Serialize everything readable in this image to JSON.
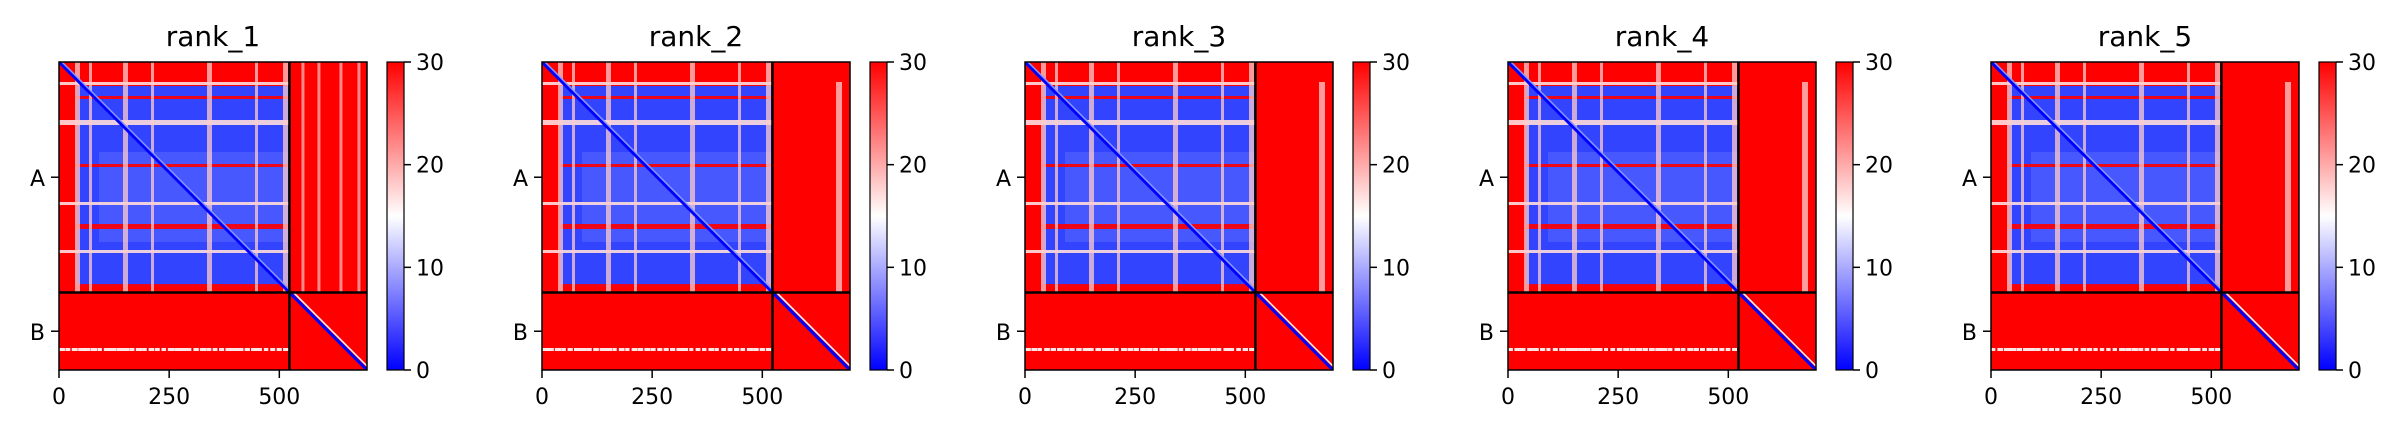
{
  "chart_data": [
    {
      "type": "heatmap",
      "title": "rank_1",
      "chains": [
        "A",
        "B"
      ],
      "chain_lengths": [
        523,
        176
      ],
      "x_ticks": [
        0,
        250,
        500
      ],
      "xlim": [
        0,
        699
      ],
      "ylim": [
        0,
        699
      ],
      "colorbar": {
        "ticks": [
          0,
          10,
          20,
          30
        ],
        "range": [
          0,
          30
        ],
        "colormap": "bwr"
      }
    },
    {
      "type": "heatmap",
      "title": "rank_2",
      "chains": [
        "A",
        "B"
      ],
      "chain_lengths": [
        523,
        176
      ],
      "x_ticks": [
        0,
        250,
        500
      ],
      "xlim": [
        0,
        699
      ],
      "ylim": [
        0,
        699
      ],
      "colorbar": {
        "ticks": [
          0,
          10,
          20,
          30
        ],
        "range": [
          0,
          30
        ],
        "colormap": "bwr"
      }
    },
    {
      "type": "heatmap",
      "title": "rank_3",
      "chains": [
        "A",
        "B"
      ],
      "chain_lengths": [
        523,
        176
      ],
      "x_ticks": [
        0,
        250,
        500
      ],
      "xlim": [
        0,
        699
      ],
      "ylim": [
        0,
        699
      ],
      "colorbar": {
        "ticks": [
          0,
          10,
          20,
          30
        ],
        "range": [
          0,
          30
        ],
        "colormap": "bwr"
      }
    },
    {
      "type": "heatmap",
      "title": "rank_4",
      "chains": [
        "A",
        "B"
      ],
      "chain_lengths": [
        523,
        176
      ],
      "x_ticks": [
        0,
        250,
        500
      ],
      "xlim": [
        0,
        699
      ],
      "ylim": [
        0,
        699
      ],
      "colorbar": {
        "ticks": [
          0,
          10,
          20,
          30
        ],
        "range": [
          0,
          30
        ],
        "colormap": "bwr"
      }
    },
    {
      "type": "heatmap",
      "title": "rank_5",
      "chains": [
        "A",
        "B"
      ],
      "chain_lengths": [
        523,
        176
      ],
      "x_ticks": [
        0,
        250,
        500
      ],
      "xlim": [
        0,
        699
      ],
      "ylim": [
        0,
        699
      ],
      "colorbar": {
        "ticks": [
          0,
          10,
          20,
          30
        ],
        "range": [
          0,
          30
        ],
        "colormap": "bwr"
      }
    }
  ],
  "colors": {
    "low": "#0000ff",
    "mid": "#ffffff",
    "high": "#ff0000",
    "boundary": "#000000"
  }
}
